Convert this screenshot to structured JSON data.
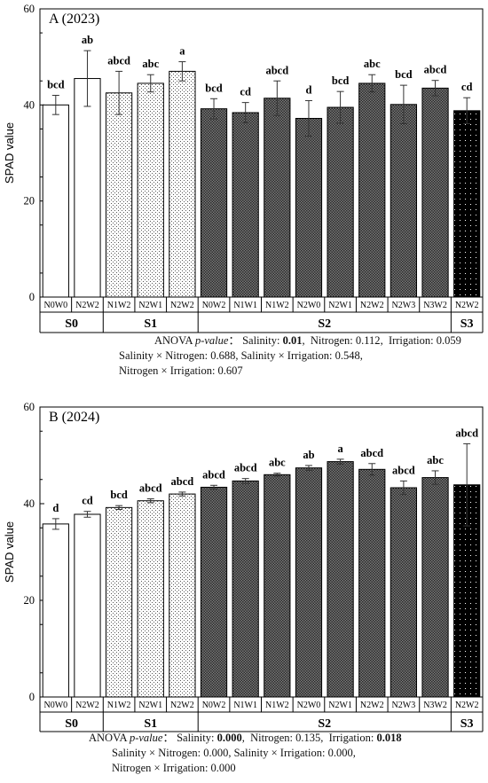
{
  "chart_data": [
    {
      "type": "bar",
      "title": "A (2023)",
      "ylabel": "SPAD value",
      "ylim": [
        0,
        60
      ],
      "yticks": [
        0,
        20,
        40,
        60
      ],
      "categories": [
        "N0W0",
        "N2W2",
        "N1W2",
        "N2W1",
        "N2W2",
        "N0W2",
        "N1W1",
        "N1W2",
        "N2W0",
        "N2W1",
        "N2W2",
        "N2W3",
        "N3W2",
        "N2W2"
      ],
      "values": [
        40.0,
        45.5,
        42.5,
        44.5,
        47.0,
        39.2,
        38.4,
        41.4,
        37.2,
        39.5,
        44.5,
        40.1,
        43.5,
        38.8
      ],
      "errors": [
        2.0,
        5.8,
        4.5,
        1.8,
        2.0,
        2.1,
        2.1,
        3.6,
        3.7,
        3.3,
        1.8,
        4.0,
        1.6,
        2.7
      ],
      "letters": [
        "bcd",
        "ab",
        "abcd",
        "abc",
        "a",
        "bcd",
        "cd",
        "abcd",
        "d",
        "bcd",
        "abc",
        "bcd",
        "abcd",
        "cd"
      ],
      "patterns": [
        "white",
        "white",
        "dots-sparse",
        "dots-sparse",
        "dots-sparse",
        "checker",
        "checker",
        "checker",
        "checker",
        "checker",
        "checker",
        "checker",
        "checker",
        "dots-black"
      ],
      "groups": [
        {
          "label": "S0",
          "span": [
            0,
            1
          ]
        },
        {
          "label": "S1",
          "span": [
            2,
            4
          ]
        },
        {
          "label": "S2",
          "span": [
            5,
            12
          ]
        },
        {
          "label": "S3",
          "span": [
            13,
            13
          ]
        }
      ],
      "anova": {
        "prefix": "ANOVA",
        "pvalue_label": "p-value",
        "separator": "：",
        "salinity_label": "Salinity:",
        "salinity": "0.01",
        "nitrogen_label": "Nitrogen:",
        "nitrogen": "0.112",
        "irrigation_label": "Irrigation:",
        "irrigation": "0.059",
        "sxn_label": "Salinity × Nitrogen:",
        "sxn": "0.688",
        "sxi_label": "Salinity × Irrigation:",
        "sxi": "0.548",
        "nxi_label": "Nitrogen × Irrigation:",
        "nxi": "0.607"
      }
    },
    {
      "type": "bar",
      "title": "B (2024)",
      "ylabel": "SPAD value",
      "ylim": [
        0,
        60
      ],
      "yticks": [
        0,
        20,
        40,
        60
      ],
      "categories": [
        "N0W0",
        "N2W2",
        "N1W2",
        "N2W1",
        "N2W2",
        "N0W2",
        "N1W1",
        "N1W2",
        "N2W0",
        "N2W1",
        "N2W2",
        "N2W3",
        "N3W2",
        "N2W2"
      ],
      "values": [
        35.8,
        37.8,
        39.2,
        40.6,
        42.0,
        43.4,
        44.7,
        46.0,
        47.4,
        48.7,
        47.1,
        43.3,
        45.4,
        43.9
      ],
      "errors": [
        1.1,
        0.6,
        0.4,
        0.4,
        0.4,
        0.4,
        0.5,
        0.3,
        0.5,
        0.5,
        1.2,
        1.4,
        1.4,
        8.5
      ],
      "letters": [
        "d",
        "cd",
        "bcd",
        "abcd",
        "abcd",
        "abcd",
        "abcd",
        "abc",
        "ab",
        "a",
        "abcd",
        "abcd",
        "abc",
        "abcd"
      ],
      "patterns": [
        "white",
        "white",
        "dots-sparse",
        "dots-sparse",
        "dots-sparse",
        "checker",
        "checker",
        "checker",
        "checker",
        "checker",
        "checker",
        "checker",
        "checker",
        "dots-black"
      ],
      "groups": [
        {
          "label": "S0",
          "span": [
            0,
            1
          ]
        },
        {
          "label": "S1",
          "span": [
            2,
            4
          ]
        },
        {
          "label": "S2",
          "span": [
            5,
            12
          ]
        },
        {
          "label": "S3",
          "span": [
            13,
            13
          ]
        }
      ],
      "anova": {
        "prefix": "ANOVA",
        "pvalue_label": "p-value",
        "separator": "：",
        "salinity_label": "Salinity:",
        "salinity": "0.000",
        "nitrogen_label": "Nitrogen:",
        "nitrogen": "0.135",
        "irrigation_label": "Irrigation:",
        "irrigation": "0.018",
        "sxn_label": "Salinity × Nitrogen:",
        "sxn": "0.000",
        "sxi_label": "Salinity × Irrigation:",
        "sxi": "0.000",
        "nxi_label": "Nitrogen × Irrigation:",
        "nxi": "0.000"
      }
    }
  ]
}
